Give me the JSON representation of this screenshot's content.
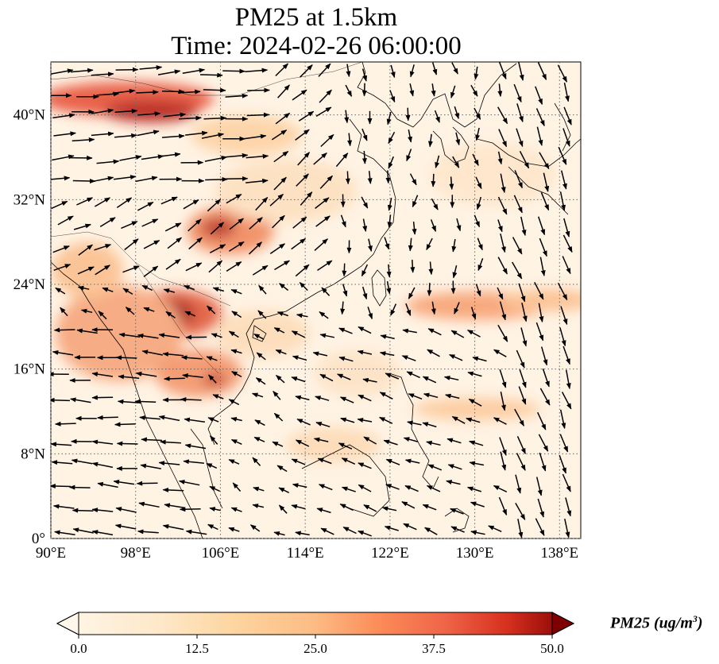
{
  "title": {
    "line1": "PM25 at 1.5km",
    "line2": "Time: 2024-02-26 06:00:00"
  },
  "map": {
    "projection": "PlateCarree",
    "lon_range": [
      90,
      140
    ],
    "lat_range": [
      0,
      45
    ],
    "lon_ticks": [
      "90°E",
      "98°E",
      "106°E",
      "114°E",
      "122°E",
      "130°E",
      "138°E"
    ],
    "lat_ticks": [
      "0°",
      "8°N",
      "16°N",
      "24°N",
      "32°N",
      "40°N"
    ],
    "gridlines": "dotted gray",
    "variable": "PM25",
    "overlay": "wind vectors (black arrows)"
  },
  "colorbar": {
    "colormap": "OrRd",
    "ticks": [
      "0.0",
      "12.5",
      "25.0",
      "37.5",
      "50.0"
    ],
    "min": 0,
    "max": 50,
    "extend": "both",
    "label_prefix": "PM25 (ug/m",
    "label_sup": "3",
    "label_suffix": ")"
  },
  "colors": {
    "low": "#fff7ec",
    "mid": "#fc8d59",
    "high": "#7f0000",
    "coast": "#000000",
    "grid": "#555555"
  }
}
